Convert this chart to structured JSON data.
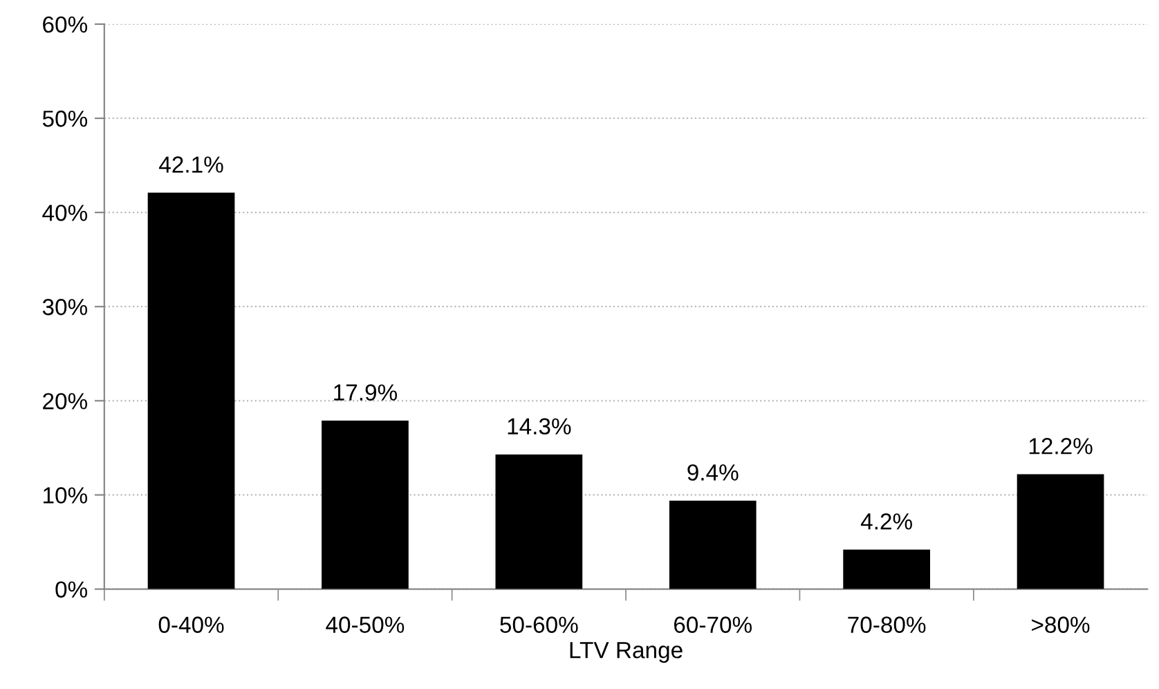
{
  "chart_data": {
    "type": "bar",
    "xlabel": "LTV Range",
    "categories": [
      "0-40%",
      "40-50%",
      "50-60%",
      "60-70%",
      "70-80%",
      ">80%"
    ],
    "values": [
      42.1,
      17.9,
      14.3,
      9.4,
      4.2,
      12.2
    ],
    "value_labels": [
      "42.1%",
      "17.9%",
      "14.3%",
      "9.4%",
      "4.2%",
      "12.2%"
    ],
    "color": "#000000",
    "ylim": [
      0,
      60
    ],
    "yticks": [
      {
        "value": 0,
        "label": "0%"
      },
      {
        "value": 10,
        "label": "10%"
      },
      {
        "value": 20,
        "label": "20%"
      },
      {
        "value": 30,
        "label": "30%"
      },
      {
        "value": 40,
        "label": "40%"
      },
      {
        "value": 50,
        "label": "50%"
      },
      {
        "value": 60,
        "label": "60%"
      }
    ],
    "grid": "y",
    "legend": false
  }
}
